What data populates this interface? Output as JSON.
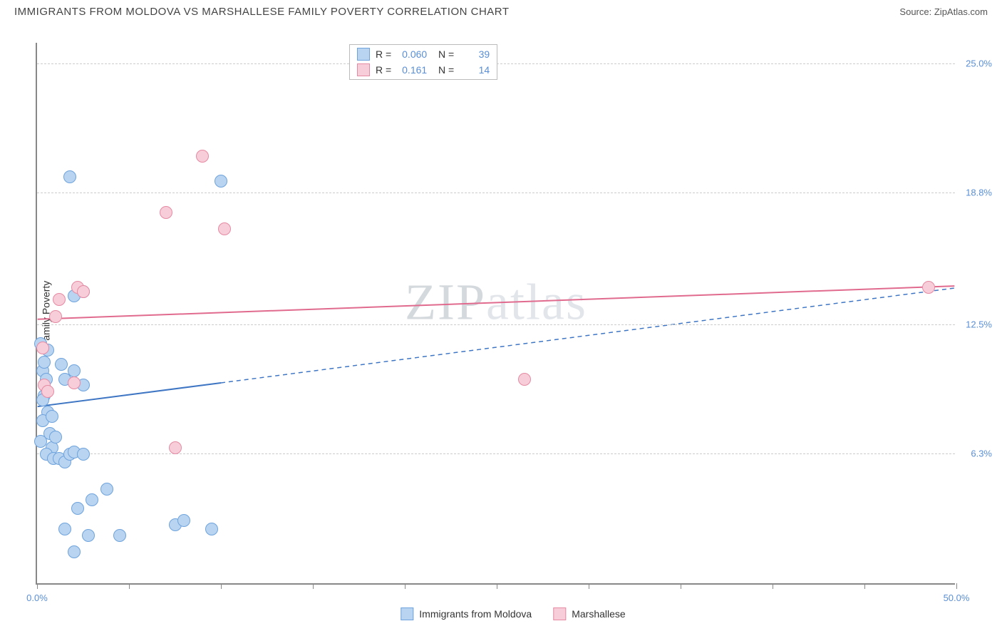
{
  "header": {
    "title": "IMMIGRANTS FROM MOLDOVA VS MARSHALLESE FAMILY POVERTY CORRELATION CHART",
    "source_label": "Source:",
    "source_value": "ZipAtlas.com"
  },
  "watermark": {
    "zip": "ZIP",
    "atlas": "atlas"
  },
  "chart": {
    "type": "scatter",
    "ylabel": "Family Poverty",
    "xlim": [
      0,
      50
    ],
    "ylim": [
      0,
      26
    ],
    "background_color": "#ffffff",
    "axis_color": "#888888",
    "grid_color": "#cccccc",
    "xtick_positions": [
      0,
      5,
      10,
      15,
      20,
      25,
      30,
      35,
      40,
      45,
      50
    ],
    "xtick_labels": {
      "0": "0.0%",
      "50": "50.0%"
    },
    "ytick_positions": [
      6.3,
      12.5,
      18.8,
      25.0
    ],
    "ytick_labels": [
      "6.3%",
      "12.5%",
      "18.8%",
      "25.0%"
    ],
    "series": [
      {
        "name": "Immigrants from Moldova",
        "color_fill": "#b9d4f0",
        "color_stroke": "#6ea3dd",
        "marker_radius": 9,
        "stats": {
          "R": "0.060",
          "N": "39"
        },
        "trend": {
          "x1": 0,
          "y1": 8.5,
          "x2": 50,
          "y2": 14.2,
          "solid_until_x": 10,
          "color": "#3f76c4",
          "width": 2
        },
        "points": [
          [
            0.2,
            11.5
          ],
          [
            0.3,
            10.2
          ],
          [
            0.5,
            9.8
          ],
          [
            0.4,
            9.0
          ],
          [
            0.6,
            8.2
          ],
          [
            0.3,
            7.8
          ],
          [
            0.7,
            7.2
          ],
          [
            0.2,
            6.8
          ],
          [
            0.8,
            6.5
          ],
          [
            0.5,
            6.2
          ],
          [
            0.9,
            6.0
          ],
          [
            1.2,
            6.0
          ],
          [
            1.5,
            5.8
          ],
          [
            1.8,
            6.2
          ],
          [
            2.0,
            6.3
          ],
          [
            2.5,
            6.2
          ],
          [
            1.0,
            7.0
          ],
          [
            0.4,
            10.6
          ],
          [
            1.3,
            10.5
          ],
          [
            1.5,
            9.8
          ],
          [
            2.0,
            10.2
          ],
          [
            2.5,
            9.5
          ],
          [
            0.6,
            11.2
          ],
          [
            2.0,
            13.8
          ],
          [
            2.5,
            14.0
          ],
          [
            1.8,
            19.5
          ],
          [
            2.2,
            3.6
          ],
          [
            3.0,
            4.0
          ],
          [
            3.8,
            4.5
          ],
          [
            2.8,
            2.3
          ],
          [
            4.5,
            2.3
          ],
          [
            2.0,
            1.5
          ],
          [
            1.5,
            2.6
          ],
          [
            7.5,
            2.8
          ],
          [
            9.5,
            2.6
          ],
          [
            10.0,
            19.3
          ],
          [
            8.0,
            3.0
          ],
          [
            0.3,
            8.8
          ],
          [
            0.8,
            8.0
          ]
        ]
      },
      {
        "name": "Marshallese",
        "color_fill": "#f6cdd8",
        "color_stroke": "#e68aa4",
        "marker_radius": 9,
        "stats": {
          "R": "0.161",
          "N": "14"
        },
        "trend": {
          "x1": 0,
          "y1": 12.7,
          "x2": 50,
          "y2": 14.3,
          "solid_until_x": 50,
          "color": "#e06b8f",
          "width": 2
        },
        "points": [
          [
            0.3,
            11.3
          ],
          [
            0.4,
            9.5
          ],
          [
            1.2,
            13.6
          ],
          [
            2.2,
            14.2
          ],
          [
            2.5,
            14.0
          ],
          [
            2.0,
            9.6
          ],
          [
            1.0,
            12.8
          ],
          [
            7.0,
            17.8
          ],
          [
            9.0,
            20.5
          ],
          [
            10.2,
            17.0
          ],
          [
            7.5,
            6.5
          ],
          [
            26.5,
            9.8
          ],
          [
            48.5,
            14.2
          ],
          [
            0.6,
            9.2
          ]
        ]
      }
    ],
    "legend": {
      "items": [
        {
          "label": "Immigrants from Moldova",
          "fill": "#b9d4f0",
          "stroke": "#6ea3dd"
        },
        {
          "label": "Marshallese",
          "fill": "#f6cdd8",
          "stroke": "#e68aa4"
        }
      ]
    }
  }
}
